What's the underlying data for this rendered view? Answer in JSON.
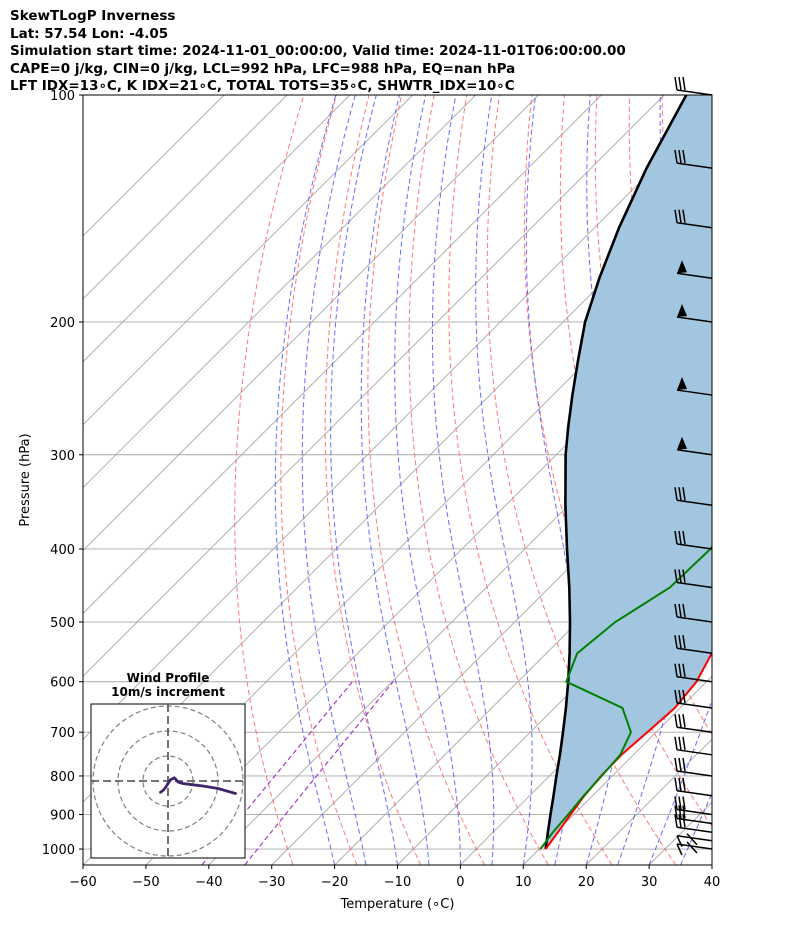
{
  "header": {
    "line1": "SkewTLogP Inverness",
    "line2": "Lat: 57.54   Lon: -4.05",
    "line3": "Simulation start time: 2024-11-01_00:00:00, Valid time: 2024-11-01T06:00:00.00",
    "line4": "CAPE=0 j/kg, CIN=0 j/kg, LCL=992 hPa, LFC=988 hPa, EQ=nan hPa",
    "line5": "LFT IDX=13∘C, K IDX=21∘C, TOTAL TOTS=35∘C, SHWTR_IDX=10∘C"
  },
  "chart_data": [
    {
      "type": "line",
      "subtype": "skewt-logp",
      "xlabel": "Temperature (∘C)",
      "ylabel": "Pressure (hPa)",
      "xlim": [
        -60,
        40
      ],
      "ylim": [
        1050,
        100
      ],
      "yscale": "log",
      "x_ticks": [
        -60,
        -50,
        -40,
        -30,
        -20,
        -10,
        0,
        10,
        20,
        30,
        40
      ],
      "y_ticks": [
        100,
        200,
        300,
        400,
        500,
        600,
        700,
        800,
        900,
        1000
      ],
      "grid": true,
      "colors": {
        "temperature": "#ff0000",
        "dewpoint": "#008000",
        "parcel": "#000000",
        "cape_fill": "#a3c6e0",
        "isotherms": "#a8a8a8",
        "dry_adiabats": "#ff6060",
        "moist_adiabats": "#5050ff",
        "mixing_ratio": "#9b30c0"
      },
      "series": [
        {
          "role": "temperature",
          "points": [
            [
              1000,
              11.0
            ],
            [
              950,
              10.3
            ],
            [
              900,
              9.5
            ],
            [
              850,
              8.7
            ],
            [
              800,
              8.2
            ],
            [
              750,
              8.1
            ],
            [
              700,
              8.6
            ],
            [
              650,
              9.1
            ],
            [
              600,
              8.4
            ],
            [
              550,
              6.3
            ],
            [
              500,
              4.3
            ],
            [
              450,
              1.5
            ],
            [
              400,
              -3.8
            ],
            [
              350,
              -10.2
            ],
            [
              300,
              -15.6
            ],
            [
              275,
              -18.6
            ],
            [
              250,
              -23.3
            ],
            [
              225,
              -28.6
            ],
            [
              200,
              -34.5
            ],
            [
              190,
              -34.8
            ],
            [
              180,
              -33.5
            ],
            [
              170,
              -33.0
            ],
            [
              160,
              -34.0
            ],
            [
              150,
              -36.2
            ],
            [
              140,
              -39.0
            ],
            [
              130,
              -42.5
            ],
            [
              120,
              -46.5
            ],
            [
              110,
              -51.0
            ],
            [
              100,
              -56.0
            ]
          ]
        },
        {
          "role": "dewpoint",
          "points": [
            [
              1000,
              10.2
            ],
            [
              950,
              9.5
            ],
            [
              900,
              9.1
            ],
            [
              850,
              8.6
            ],
            [
              800,
              8.3
            ],
            [
              750,
              7.9
            ],
            [
              700,
              6.0
            ],
            [
              650,
              0.8
            ],
            [
              600,
              -12.3
            ],
            [
              550,
              -15.1
            ],
            [
              500,
              -14.0
            ],
            [
              450,
              -10.8
            ],
            [
              400,
              -10.5
            ],
            [
              350,
              -12.5
            ],
            [
              300,
              -24.2
            ],
            [
              275,
              -23.8
            ],
            [
              250,
              -25.0
            ],
            [
              225,
              -29.4
            ],
            [
              200,
              -37.9
            ],
            [
              190,
              -41.1
            ],
            [
              180,
              -43.1
            ],
            [
              170,
              -44.0
            ],
            [
              160,
              -46.1
            ],
            [
              150,
              -50.0
            ],
            [
              140,
              -54.1
            ],
            [
              130,
              -58.2
            ],
            [
              120,
              -61.0
            ],
            [
              110,
              -64.6
            ],
            [
              100,
              -68.0
            ]
          ]
        },
        {
          "role": "parcel",
          "points": [
            [
              1000,
              11.0
            ],
            [
              950,
              8.7
            ],
            [
              900,
              6.3
            ],
            [
              850,
              3.8
            ],
            [
              800,
              1.1
            ],
            [
              750,
              -1.7
            ],
            [
              700,
              -4.8
            ],
            [
              650,
              -8.2
            ],
            [
              600,
              -12.0
            ],
            [
              550,
              -16.3
            ],
            [
              500,
              -21.2
            ],
            [
              450,
              -26.8
            ],
            [
              400,
              -33.3
            ],
            [
              350,
              -40.5
            ],
            [
              300,
              -48.5
            ],
            [
              275,
              -52.6
            ],
            [
              250,
              -56.9
            ],
            [
              225,
              -61.5
            ],
            [
              200,
              -66.5
            ],
            [
              175,
              -71.2
            ],
            [
              150,
              -76.1
            ],
            [
              125,
              -81.2
            ],
            [
              100,
              -86.5
            ]
          ]
        }
      ],
      "wind_barbs_pressures": [
        1000,
        975,
        950,
        925,
        900,
        850,
        800,
        750,
        700,
        650,
        600,
        550,
        500,
        450,
        400,
        350,
        300,
        250,
        200,
        175,
        150,
        125,
        100
      ]
    },
    {
      "type": "hodograph",
      "title": "Wind Profile",
      "subtitle": "10m/s increment",
      "ring_increment": 10,
      "color": "#40256a",
      "points": [
        [
          27,
          -5
        ],
        [
          20,
          -3
        ],
        [
          14,
          -2
        ],
        [
          10,
          -1.5
        ],
        [
          6,
          -1
        ],
        [
          4,
          -0.4
        ],
        [
          3,
          0.8
        ],
        [
          2.5,
          1.3
        ],
        [
          2,
          1
        ],
        [
          1,
          0.5
        ],
        [
          0,
          -1
        ],
        [
          -1,
          -2.6
        ],
        [
          -2,
          -3.8
        ],
        [
          -3,
          -4.5
        ]
      ]
    }
  ]
}
